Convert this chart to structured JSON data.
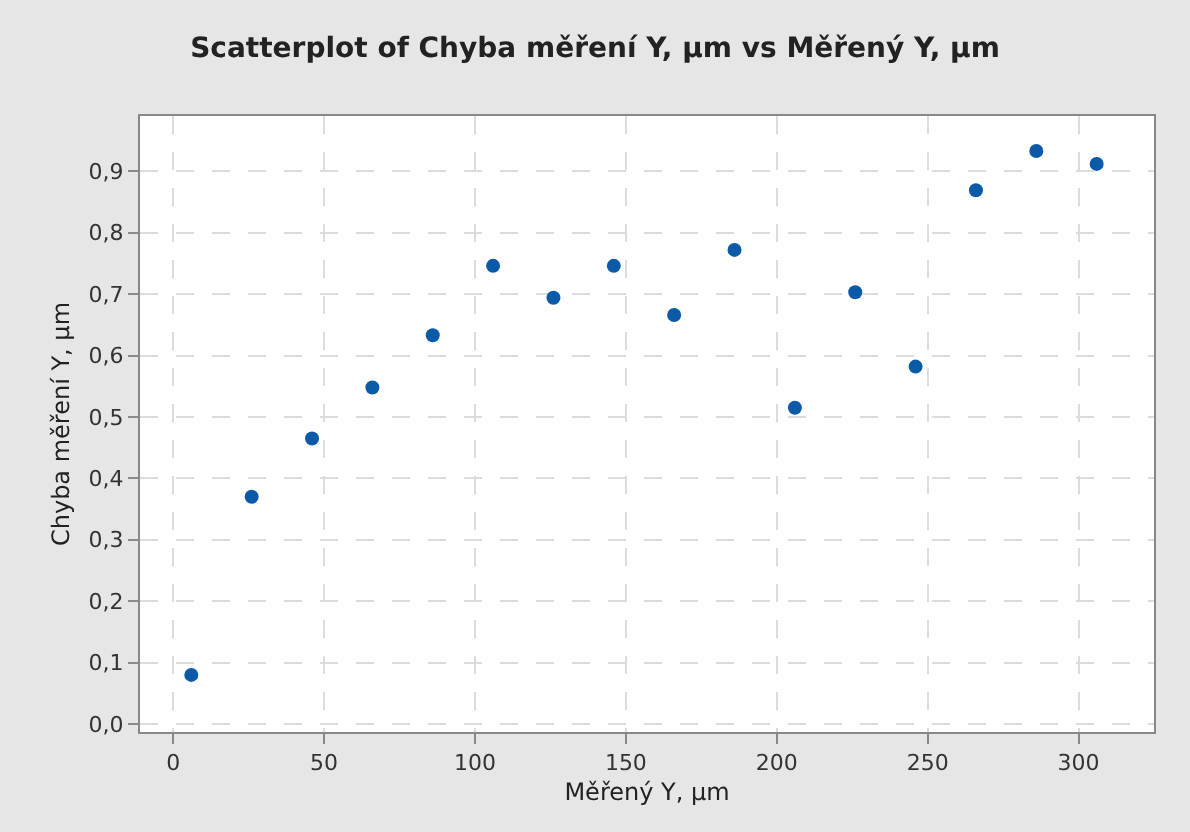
{
  "chart_data": {
    "type": "scatter",
    "title": "Scatterplot of Chyba měření Y, µm vs Měřený Y, µm",
    "xlabel": "Měřený Y, µm",
    "ylabel": "Chyba měření Y, µm",
    "series": [
      {
        "color": "#0a5aa8",
        "x": [
          6,
          26,
          46,
          66,
          86,
          106,
          126,
          146,
          166,
          186,
          206,
          226,
          246,
          266,
          286,
          306
        ],
        "values": [
          0.08,
          0.37,
          0.465,
          0.548,
          0.633,
          0.746,
          0.694,
          0.746,
          0.666,
          0.772,
          0.515,
          0.703,
          0.582,
          0.869,
          0.933,
          0.912
        ]
      }
    ],
    "xlim": [
      -11,
      325
    ],
    "xticks": [
      0,
      50,
      100,
      150,
      200,
      250,
      300
    ],
    "ylim": [
      -0.013,
      0.99
    ],
    "yticks": [
      {
        "value": 0,
        "label": "0,0"
      },
      {
        "value": 0.1,
        "label": "0,1"
      },
      {
        "value": 0.2,
        "label": "0,2"
      },
      {
        "value": 0.3,
        "label": "0,3"
      },
      {
        "value": 0.4,
        "label": "0,4"
      },
      {
        "value": 0.5,
        "label": "0,5"
      },
      {
        "value": 0.6,
        "label": "0,6"
      },
      {
        "value": 0.7,
        "label": "0,7"
      },
      {
        "value": 0.8,
        "label": "0,8"
      },
      {
        "value": 0.9,
        "label": "0,9"
      }
    ],
    "grid": true,
    "marker": "circle",
    "legend": false
  }
}
